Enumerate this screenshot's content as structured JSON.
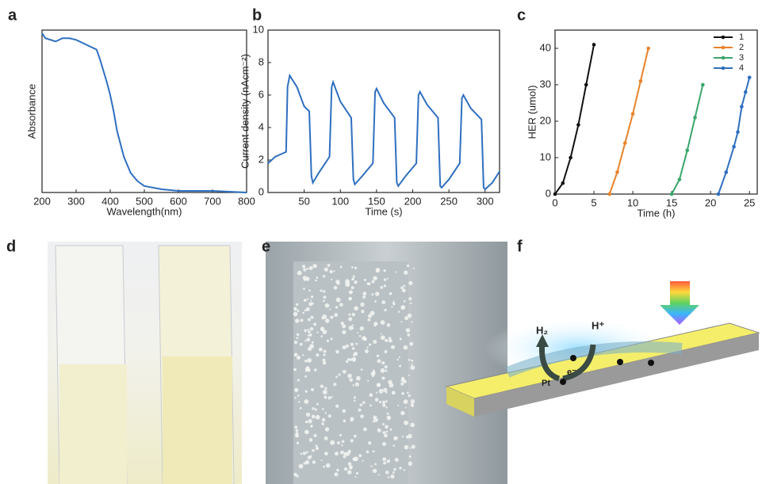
{
  "chart_data": [
    {
      "type": "line",
      "panel": "a",
      "xlabel": "Wavelength(nm)",
      "ylabel": "Absorbance",
      "color": "#2f6fc0",
      "x": [
        200,
        210,
        240,
        260,
        280,
        300,
        320,
        340,
        360,
        370,
        380,
        390,
        400,
        410,
        420,
        440,
        460,
        480,
        500,
        550,
        600,
        700,
        800
      ],
      "values": [
        0.98,
        0.95,
        0.93,
        0.95,
        0.95,
        0.94,
        0.92,
        0.9,
        0.88,
        0.82,
        0.75,
        0.68,
        0.6,
        0.5,
        0.38,
        0.22,
        0.12,
        0.07,
        0.04,
        0.02,
        0.01,
        0.01,
        0.0
      ],
      "xlim": [
        200,
        800
      ],
      "xticks": [
        200,
        300,
        400,
        500,
        600,
        700,
        800
      ],
      "ylim": [
        0,
        1
      ]
    },
    {
      "type": "line",
      "panel": "b",
      "xlabel": "Time (s)",
      "ylabel": "Current density (nAcm⁻²)",
      "color": "#2f6fc0",
      "x": [
        0,
        10,
        25,
        27,
        30,
        40,
        50,
        57,
        60,
        62,
        70,
        85,
        88,
        90,
        100,
        115,
        118,
        120,
        130,
        145,
        148,
        150,
        160,
        175,
        178,
        180,
        190,
        205,
        208,
        210,
        220,
        235,
        238,
        240,
        250,
        265,
        268,
        270,
        280,
        295,
        298,
        300,
        310,
        320
      ],
      "values": [
        1.8,
        2.2,
        2.5,
        6.5,
        7.2,
        6.5,
        5.3,
        5.0,
        1.0,
        0.6,
        1.2,
        2.2,
        6.5,
        6.8,
        5.6,
        4.6,
        0.8,
        0.5,
        1.0,
        1.8,
        6.2,
        6.4,
        5.5,
        4.6,
        0.6,
        0.4,
        1.0,
        1.8,
        6.0,
        6.2,
        5.4,
        4.6,
        0.4,
        0.3,
        0.8,
        1.8,
        5.8,
        6.0,
        5.2,
        4.5,
        0.3,
        0.2,
        0.6,
        1.3
      ],
      "xlim": [
        0,
        320
      ],
      "xticks": [
        50,
        100,
        150,
        200,
        250,
        300
      ],
      "ylim": [
        0,
        10
      ],
      "yticks": [
        0,
        2,
        4,
        6,
        8,
        10
      ]
    },
    {
      "type": "line",
      "panel": "c",
      "xlabel": "Time (h)",
      "ylabel": "HER (umol)",
      "markers": true,
      "legend": "top-right",
      "series": [
        {
          "name": "1",
          "color": "#111111",
          "x": [
            0,
            1,
            2,
            3,
            4,
            5
          ],
          "values": [
            0,
            3,
            10,
            19,
            30,
            41
          ]
        },
        {
          "name": "2",
          "color": "#e8822a",
          "x": [
            7,
            8,
            9,
            10,
            11,
            12
          ],
          "values": [
            0,
            6,
            14,
            22,
            31,
            40
          ]
        },
        {
          "name": "3",
          "color": "#3aa66a",
          "x": [
            15,
            16,
            17,
            18,
            19
          ],
          "values": [
            0,
            4,
            12,
            21,
            30
          ]
        },
        {
          "name": "4",
          "color": "#2f6fc0",
          "x": [
            21,
            22,
            23,
            23.5,
            24,
            24.5,
            25
          ],
          "values": [
            0,
            6,
            13,
            17,
            24,
            28,
            32
          ]
        }
      ],
      "xlim": [
        0,
        26
      ],
      "xticks": [
        0,
        5,
        10,
        15,
        20,
        25
      ],
      "ylim": [
        0,
        45
      ],
      "yticks": [
        0,
        10,
        20,
        30,
        40
      ]
    }
  ],
  "photos": [
    {
      "panel": "d"
    },
    {
      "panel": "e"
    }
  ],
  "diagram": {
    "panel": "f",
    "labels": [
      "H₂",
      "H⁺",
      "e⁻",
      "Pt"
    ]
  }
}
